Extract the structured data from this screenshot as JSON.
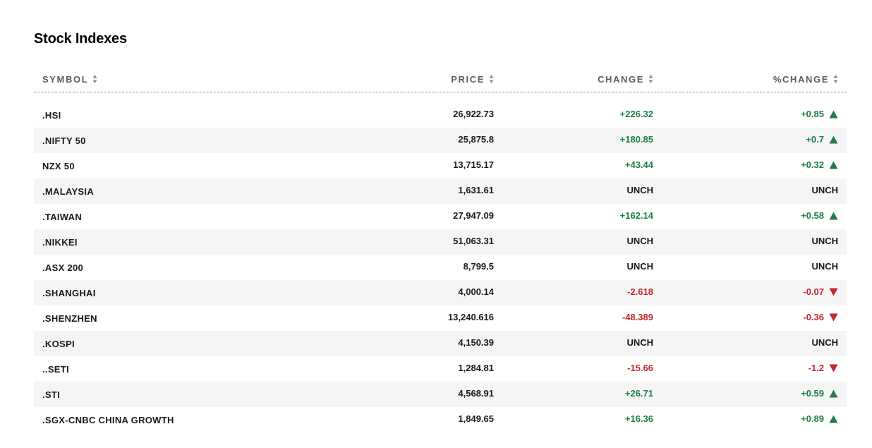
{
  "title": "Stock Indexes",
  "columns": {
    "symbol": "SYMBOL",
    "price": "PRICE",
    "change": "CHANGE",
    "pct_change": "%CHANGE"
  },
  "colors": {
    "positive": "#1f7e4a",
    "negative": "#c3272e",
    "row_alt": "#f5f5f5"
  },
  "icons": {
    "sort": "sort-arrows-icon",
    "up": "triangle-up-icon",
    "down": "triangle-down-icon"
  },
  "rows": [
    {
      "symbol": ".HSI",
      "price": "26,922.73",
      "change": "+226.32",
      "pct_change": "+0.85",
      "direction": "up"
    },
    {
      "symbol": ".NIFTY 50",
      "price": "25,875.8",
      "change": "+180.85",
      "pct_change": "+0.7",
      "direction": "up"
    },
    {
      "symbol": "NZX 50",
      "price": "13,715.17",
      "change": "+43.44",
      "pct_change": "+0.32",
      "direction": "up"
    },
    {
      "symbol": ".MALAYSIA",
      "price": "1,631.61",
      "change": "UNCH",
      "pct_change": "UNCH",
      "direction": "unch"
    },
    {
      "symbol": ".TAIWAN",
      "price": "27,947.09",
      "change": "+162.14",
      "pct_change": "+0.58",
      "direction": "up"
    },
    {
      "symbol": ".NIKKEI",
      "price": "51,063.31",
      "change": "UNCH",
      "pct_change": "UNCH",
      "direction": "unch"
    },
    {
      "symbol": ".ASX 200",
      "price": "8,799.5",
      "change": "UNCH",
      "pct_change": "UNCH",
      "direction": "unch"
    },
    {
      "symbol": ".SHANGHAI",
      "price": "4,000.14",
      "change": "-2.618",
      "pct_change": "-0.07",
      "direction": "down"
    },
    {
      "symbol": ".SHENZHEN",
      "price": "13,240.616",
      "change": "-48.389",
      "pct_change": "-0.36",
      "direction": "down"
    },
    {
      "symbol": ".KOSPI",
      "price": "4,150.39",
      "change": "UNCH",
      "pct_change": "UNCH",
      "direction": "unch"
    },
    {
      "symbol": "..SETI",
      "price": "1,284.81",
      "change": "-15.66",
      "pct_change": "-1.2",
      "direction": "down"
    },
    {
      "symbol": ".STI",
      "price": "4,568.91",
      "change": "+26.71",
      "pct_change": "+0.59",
      "direction": "up"
    },
    {
      "symbol": ".SGX-CNBC CHINA GROWTH",
      "price": "1,849.65",
      "change": "+16.36",
      "pct_change": "+0.89",
      "direction": "up"
    }
  ]
}
